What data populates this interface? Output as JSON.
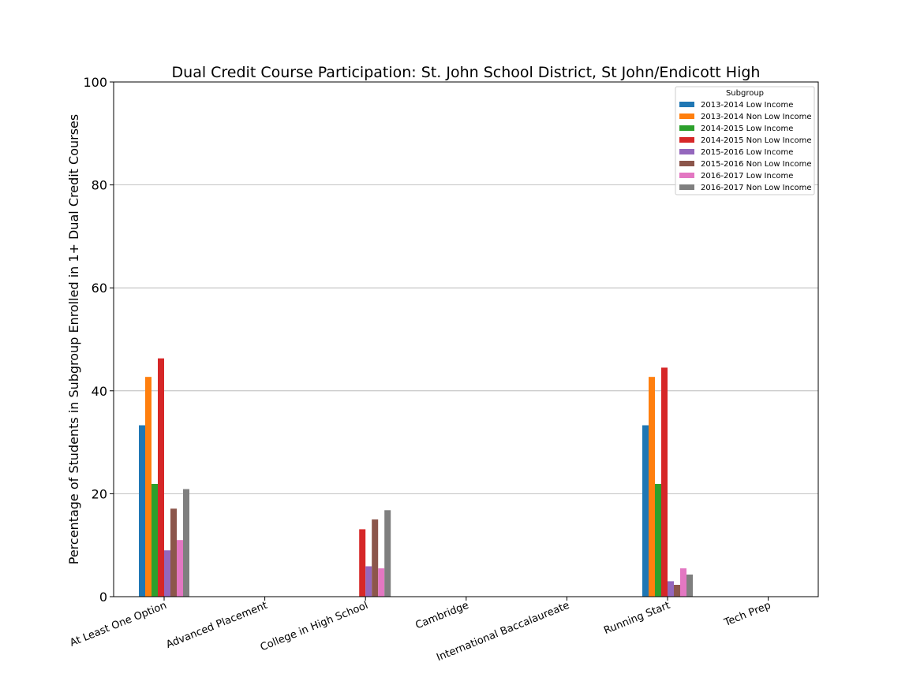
{
  "chart_data": {
    "type": "bar",
    "title": "Dual Credit Course Participation: St. John School District, St John/Endicott High",
    "xlabel": "",
    "ylabel": "Percentage of Students in Subgroup Enrolled in 1+ Dual Credit Courses",
    "ylim": [
      0,
      100
    ],
    "yticks": [
      0,
      20,
      40,
      60,
      80,
      100
    ],
    "grid": "horizontal",
    "legend": {
      "title": "Subgroup",
      "placement": "top-right"
    },
    "categories": [
      "At Least One Option",
      "Advanced Placement",
      "College in High School",
      "Cambridge",
      "International Baccalaureate",
      "Running Start",
      "Tech Prep"
    ],
    "series": [
      {
        "name": "2013-2014 Low Income",
        "color": "#1f77b4",
        "values": [
          33.3,
          0,
          0,
          0,
          0,
          33.3,
          0
        ]
      },
      {
        "name": "2013-2014 Non Low Income",
        "color": "#ff7f0e",
        "values": [
          42.7,
          0,
          0,
          0,
          0,
          42.7,
          0
        ]
      },
      {
        "name": "2014-2015 Low Income",
        "color": "#2ca02c",
        "values": [
          21.9,
          0,
          0,
          0,
          0,
          21.9,
          0
        ]
      },
      {
        "name": "2014-2015 Non Low Income",
        "color": "#d62728",
        "values": [
          46.3,
          0,
          13.1,
          0,
          0,
          44.5,
          0
        ]
      },
      {
        "name": "2015-2016 Low Income",
        "color": "#9467bd",
        "values": [
          9.0,
          0,
          5.9,
          0,
          0,
          3.0,
          0
        ]
      },
      {
        "name": "2015-2016 Non Low Income",
        "color": "#8c564b",
        "values": [
          17.1,
          0,
          15.0,
          0,
          0,
          2.3,
          0
        ]
      },
      {
        "name": "2016-2017 Low Income",
        "color": "#e377c2",
        "values": [
          11.0,
          0,
          5.5,
          0,
          0,
          5.5,
          0
        ]
      },
      {
        "name": "2016-2017 Non Low Income",
        "color": "#7f7f7f",
        "values": [
          20.9,
          0,
          16.8,
          0,
          0,
          4.3,
          0
        ]
      }
    ]
  }
}
